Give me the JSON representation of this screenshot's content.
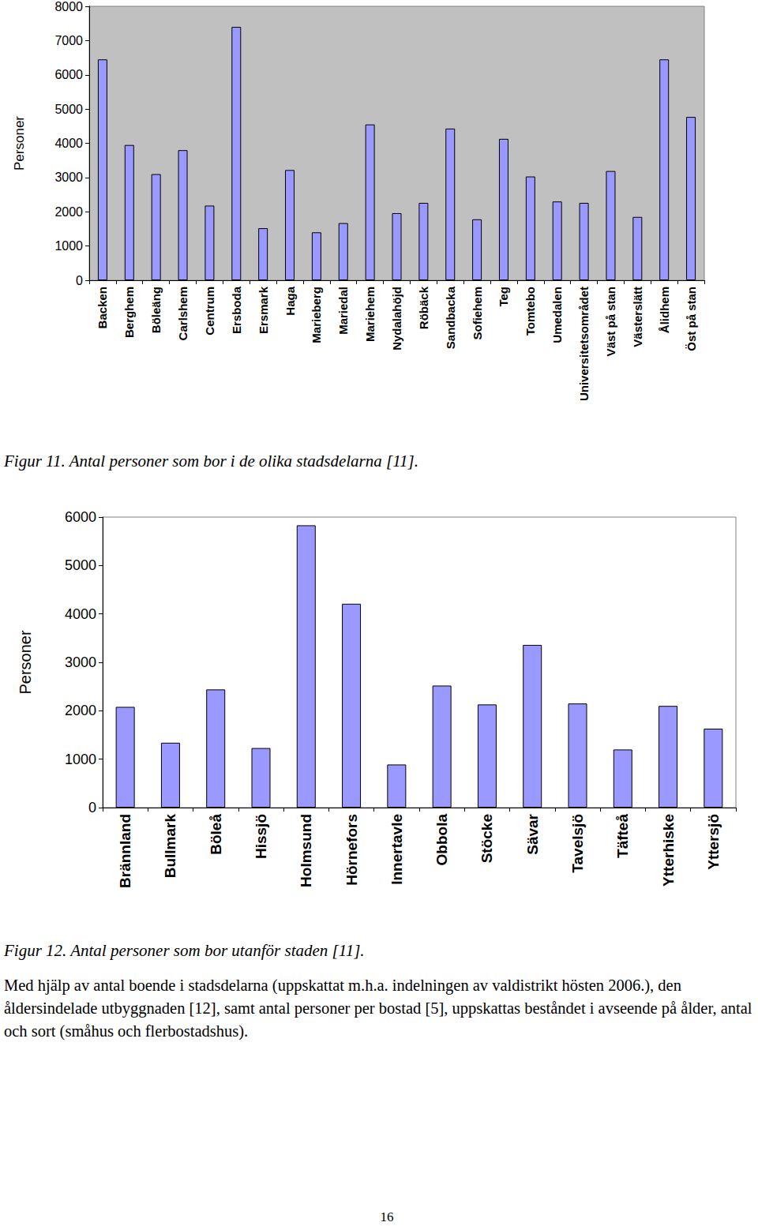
{
  "chart_data": [
    {
      "type": "bar",
      "caption": "Figur 11. Antal personer som bor i de olika stadsdelarna [11].",
      "y_label": "Personer",
      "categories": [
        "Backen",
        "Berghem",
        "Böleäng",
        "Carlshem",
        "Centrum",
        "Ersboda",
        "Ersmark",
        "Haga",
        "Marieberg",
        "Mariedal",
        "Mariehem",
        "Nydalahöjd",
        "Röbäck",
        "Sandbacka",
        "Sofiehem",
        "Teg",
        "Tomtebo",
        "Umedalen",
        "Universitetsområdet",
        "Väst på stan",
        "Västerslätt",
        "Ålidhem",
        "Öst på stan"
      ],
      "values": [
        6450,
        3950,
        3100,
        3800,
        2180,
        7400,
        1520,
        3220,
        1400,
        1670,
        4550,
        1960,
        2260,
        4430,
        1780,
        4130,
        3030,
        2300,
        2260,
        3190,
        1850,
        6450,
        4770
      ],
      "color": "#9999ff",
      "ylim": [
        0,
        8000
      ],
      "yticks": [
        0,
        1000,
        2000,
        3000,
        4000,
        5000,
        6000,
        7000,
        8000
      ],
      "grid": false
    },
    {
      "type": "bar",
      "caption": "Figur 12. Antal personer som bor utanför staden [11].",
      "y_label": "Personer",
      "categories": [
        "Brännland",
        "Bullmark",
        "Böleå",
        "Hissjö",
        "Holmsund",
        "Hörnefors",
        "Innertavle",
        "Obbola",
        "Stöcke",
        "Sävar",
        "Tavelsjö",
        "Täfteå",
        "Ytterhiske",
        "Yttersjö"
      ],
      "values": [
        2080,
        1340,
        2440,
        1230,
        5830,
        4210,
        890,
        2520,
        2130,
        3360,
        2150,
        1200,
        2100,
        1630
      ],
      "color": "#9999ff",
      "ylim": [
        0,
        6000
      ],
      "yticks": [
        0,
        1000,
        2000,
        3000,
        4000,
        5000,
        6000
      ],
      "grid": false
    }
  ],
  "text": {
    "paragraph": "Med hjälp av antal boende i stadsdelarna (uppskattat m.h.a. indelningen av valdistrikt hösten 2006.), den åldersindelade utbyggnaden [12], samt antal personer per bostad [5], uppskattas beståndet i avseende på ålder, antal och sort (småhus och flerbostadshus).",
    "page_number": "16"
  }
}
